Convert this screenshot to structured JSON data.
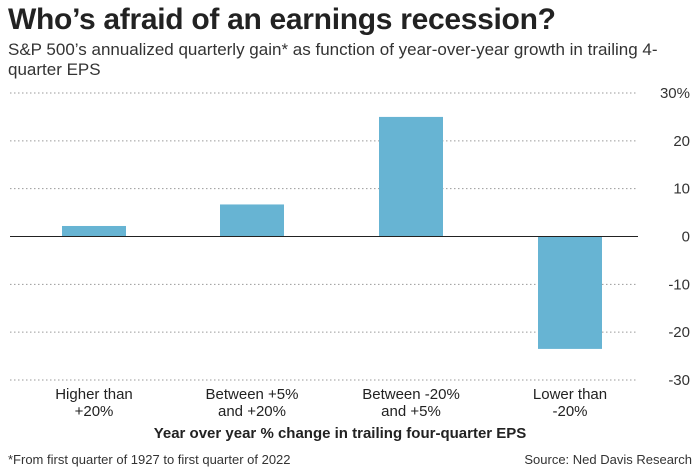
{
  "chart_data": {
    "type": "bar",
    "title": "Who’s afraid of an earnings recession?",
    "subtitle": "S&P 500’s annualized quarterly gain* as function of year-over-year growth in trailing 4-quarter EPS",
    "xlabel": "Year over year % change in trailing four-quarter EPS",
    "ylabel": "",
    "categories": [
      [
        "Higher than",
        "+20%"
      ],
      [
        "Between +5%",
        "and +20%"
      ],
      [
        "Between -20%",
        "and +5%"
      ],
      [
        "Lower than",
        "-20%"
      ]
    ],
    "values": [
      2.2,
      6.7,
      25.0,
      -23.5
    ],
    "ylim": [
      -30,
      30
    ],
    "yticks": [
      30,
      20,
      10,
      0,
      -10,
      -20,
      -30
    ],
    "ytick_labels": [
      "30%",
      "20",
      "10",
      "0",
      "-10",
      "-20",
      "-30"
    ],
    "grid": true,
    "bar_color": "#67b4d3"
  },
  "footnote": "*From first quarter of 1927 to first quarter of 2022",
  "source": "Source: Ned Davis Research"
}
